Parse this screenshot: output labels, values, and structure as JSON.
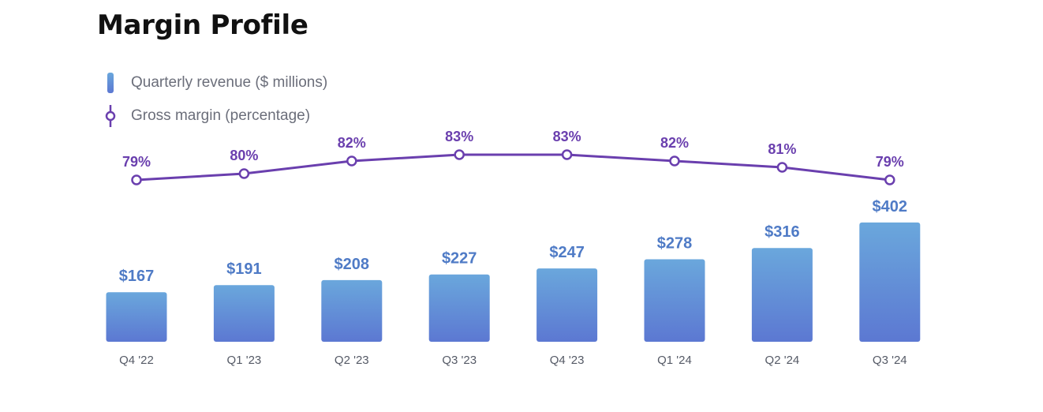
{
  "title": "Margin Profile",
  "legend": {
    "revenue": "Quarterly revenue ($ millions)",
    "margin": "Gross margin (percentage)"
  },
  "colors": {
    "bar_top": "#6aa7dc",
    "bar_bottom": "#5c78d2",
    "bar_label": "#4f7bc6",
    "line": "#6a3fae",
    "tick": "#555a66"
  },
  "chart_data": {
    "type": "bar",
    "title": "Margin Profile",
    "categories": [
      "Q4 '22",
      "Q1 '23",
      "Q2 '23",
      "Q3 '23",
      "Q4 '23",
      "Q1 '24",
      "Q2 '24",
      "Q3 '24"
    ],
    "series": [
      {
        "name": "Quarterly revenue ($ millions)",
        "type": "bar",
        "values": [
          167,
          191,
          208,
          227,
          247,
          278,
          316,
          402
        ],
        "labels": [
          "$167",
          "$191",
          "$208",
          "$227",
          "$247",
          "$278",
          "$316",
          "$402"
        ]
      },
      {
        "name": "Gross margin (percentage)",
        "type": "line",
        "values": [
          79,
          80,
          82,
          83,
          83,
          82,
          81,
          79
        ],
        "labels": [
          "79%",
          "80%",
          "82%",
          "83%",
          "83%",
          "82%",
          "81%",
          "79%"
        ]
      }
    ],
    "legend": "top-left",
    "grid": false
  }
}
